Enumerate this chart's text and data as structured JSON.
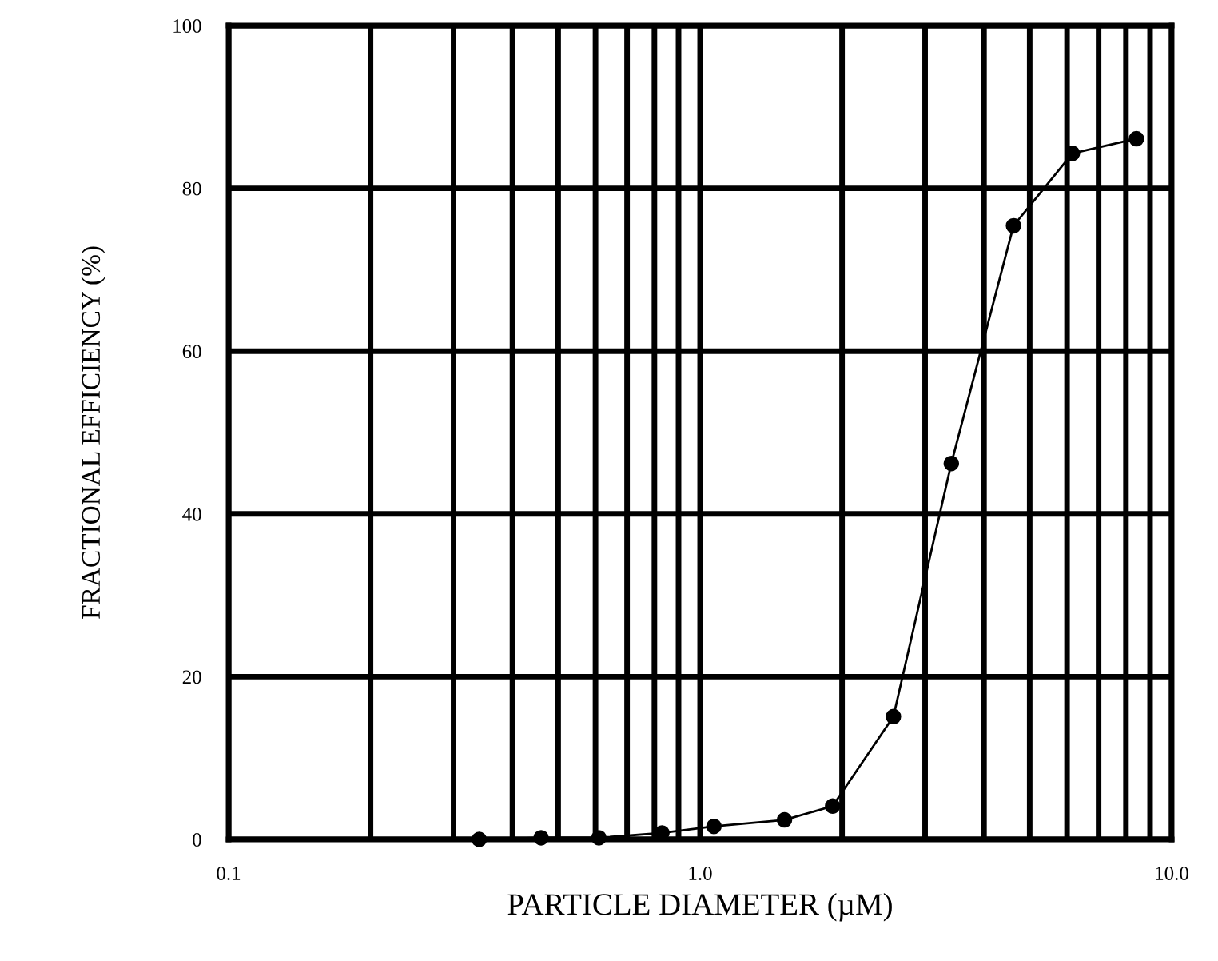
{
  "chart_data": {
    "type": "line",
    "xlabel": "PARTICLE DIAMETER (µM)",
    "ylabel": "FRACTIONAL EFFICIENCY (%)",
    "log": "x",
    "grid": true,
    "marker": "circle",
    "line_style": "solid",
    "x": [
      0.34,
      0.46,
      0.61,
      0.83,
      1.07,
      1.51,
      1.91,
      2.57,
      3.41,
      4.62,
      6.16,
      8.42
    ],
    "series": [
      {
        "color": "#000000",
        "values": [
          0,
          0.2,
          0.2,
          0.8,
          1.6,
          2.4,
          4.1,
          15.1,
          46.2,
          75.4,
          84.3,
          86.1
        ]
      }
    ],
    "xlim": [
      0.1,
      10.0
    ],
    "ylim": [
      0,
      100
    ],
    "xticks": [
      {
        "value": 0.1,
        "label": "0.1"
      },
      {
        "value": 0.2,
        "label": null
      },
      {
        "value": 0.3,
        "label": null
      },
      {
        "value": 0.4,
        "label": null
      },
      {
        "value": 0.5,
        "label": null
      },
      {
        "value": 0.6,
        "label": null
      },
      {
        "value": 0.7,
        "label": null
      },
      {
        "value": 0.8,
        "label": null
      },
      {
        "value": 0.9,
        "label": null
      },
      {
        "value": 1.0,
        "label": "1.0"
      },
      {
        "value": 2,
        "label": null
      },
      {
        "value": 3,
        "label": null
      },
      {
        "value": 4,
        "label": null
      },
      {
        "value": 5,
        "label": null
      },
      {
        "value": 6,
        "label": null
      },
      {
        "value": 7,
        "label": null
      },
      {
        "value": 8,
        "label": null
      },
      {
        "value": 9,
        "label": null
      },
      {
        "value": 10.0,
        "label": "10.0"
      }
    ],
    "yticks": [
      0,
      20,
      40,
      60,
      80,
      100
    ]
  }
}
